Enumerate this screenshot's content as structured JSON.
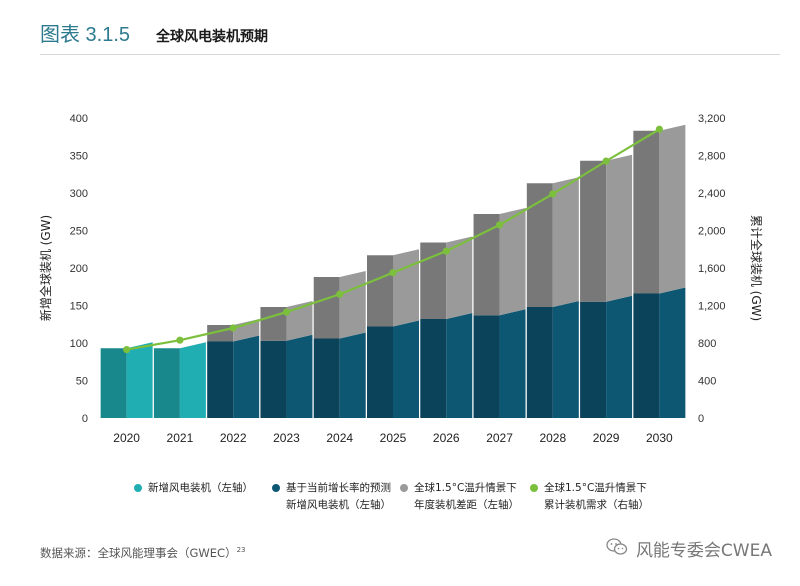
{
  "header": {
    "figure_label": "图表 3.1.5",
    "title": "全球风电装机预期"
  },
  "chart_data": {
    "type": "bar",
    "categories": [
      "2020",
      "2021",
      "2022",
      "2023",
      "2024",
      "2025",
      "2026",
      "2027",
      "2028",
      "2029",
      "2030"
    ],
    "series": [
      {
        "name": "新增风电装机（左轴）",
        "values": [
          93,
          93,
          0,
          0,
          0,
          0,
          0,
          0,
          0,
          0,
          0
        ],
        "color": "#20aeb3"
      },
      {
        "name": "基于当前增长率的预测 新增风电装机（左轴）",
        "values": [
          0,
          0,
          102,
          103,
          106,
          122,
          132,
          137,
          148,
          155,
          166
        ],
        "color": "#0e5773"
      },
      {
        "name": "全球1.5°C温升情景下 年度装机差距（左轴）",
        "values": [
          0,
          0,
          22,
          45,
          82,
          95,
          102,
          135,
          165,
          188,
          217
        ],
        "color": "#9a9a9a"
      },
      {
        "name": "全球1.5°C温升情景下 累计装机需求（右轴）",
        "values": [
          730,
          830,
          960,
          1130,
          1320,
          1550,
          1780,
          2060,
          2390,
          2740,
          3080
        ],
        "axis": "right",
        "color": "#7cbf3d"
      }
    ],
    "ylabel": "新增全球装机 (GW)",
    "ylabel_right": "累计全球装机 (GW)",
    "ylim": [
      0,
      400
    ],
    "ylim_right": [
      0,
      3200
    ],
    "yticks": [
      "400",
      "350",
      "300",
      "250",
      "200",
      "150",
      "100",
      "50",
      "0"
    ],
    "yticks_right": [
      "3,200",
      "2,800",
      "2,400",
      "2,000",
      "1,600",
      "1,200",
      "800",
      "400",
      "0"
    ]
  },
  "legend": [
    {
      "line1": "新增风电装机（左轴）",
      "line2": "",
      "color": "#20aeb3"
    },
    {
      "line1": "基于当前增长率的预测",
      "line2": "新增风电装机（左轴）",
      "color": "#0e5773"
    },
    {
      "line1": "全球1.5°C温升情景下",
      "line2": "年度装机差距（左轴）",
      "color": "#9a9a9a"
    },
    {
      "line1": "全球1.5°C温升情景下",
      "line2": "累计装机需求（右轴）",
      "color": "#7cbf3d"
    }
  ],
  "source": {
    "text": "数据来源：全球风能理事会（GWEC）",
    "ref": "23"
  },
  "watermark": {
    "icon": "wechat-icon",
    "text": "风能专委会CWEA"
  }
}
